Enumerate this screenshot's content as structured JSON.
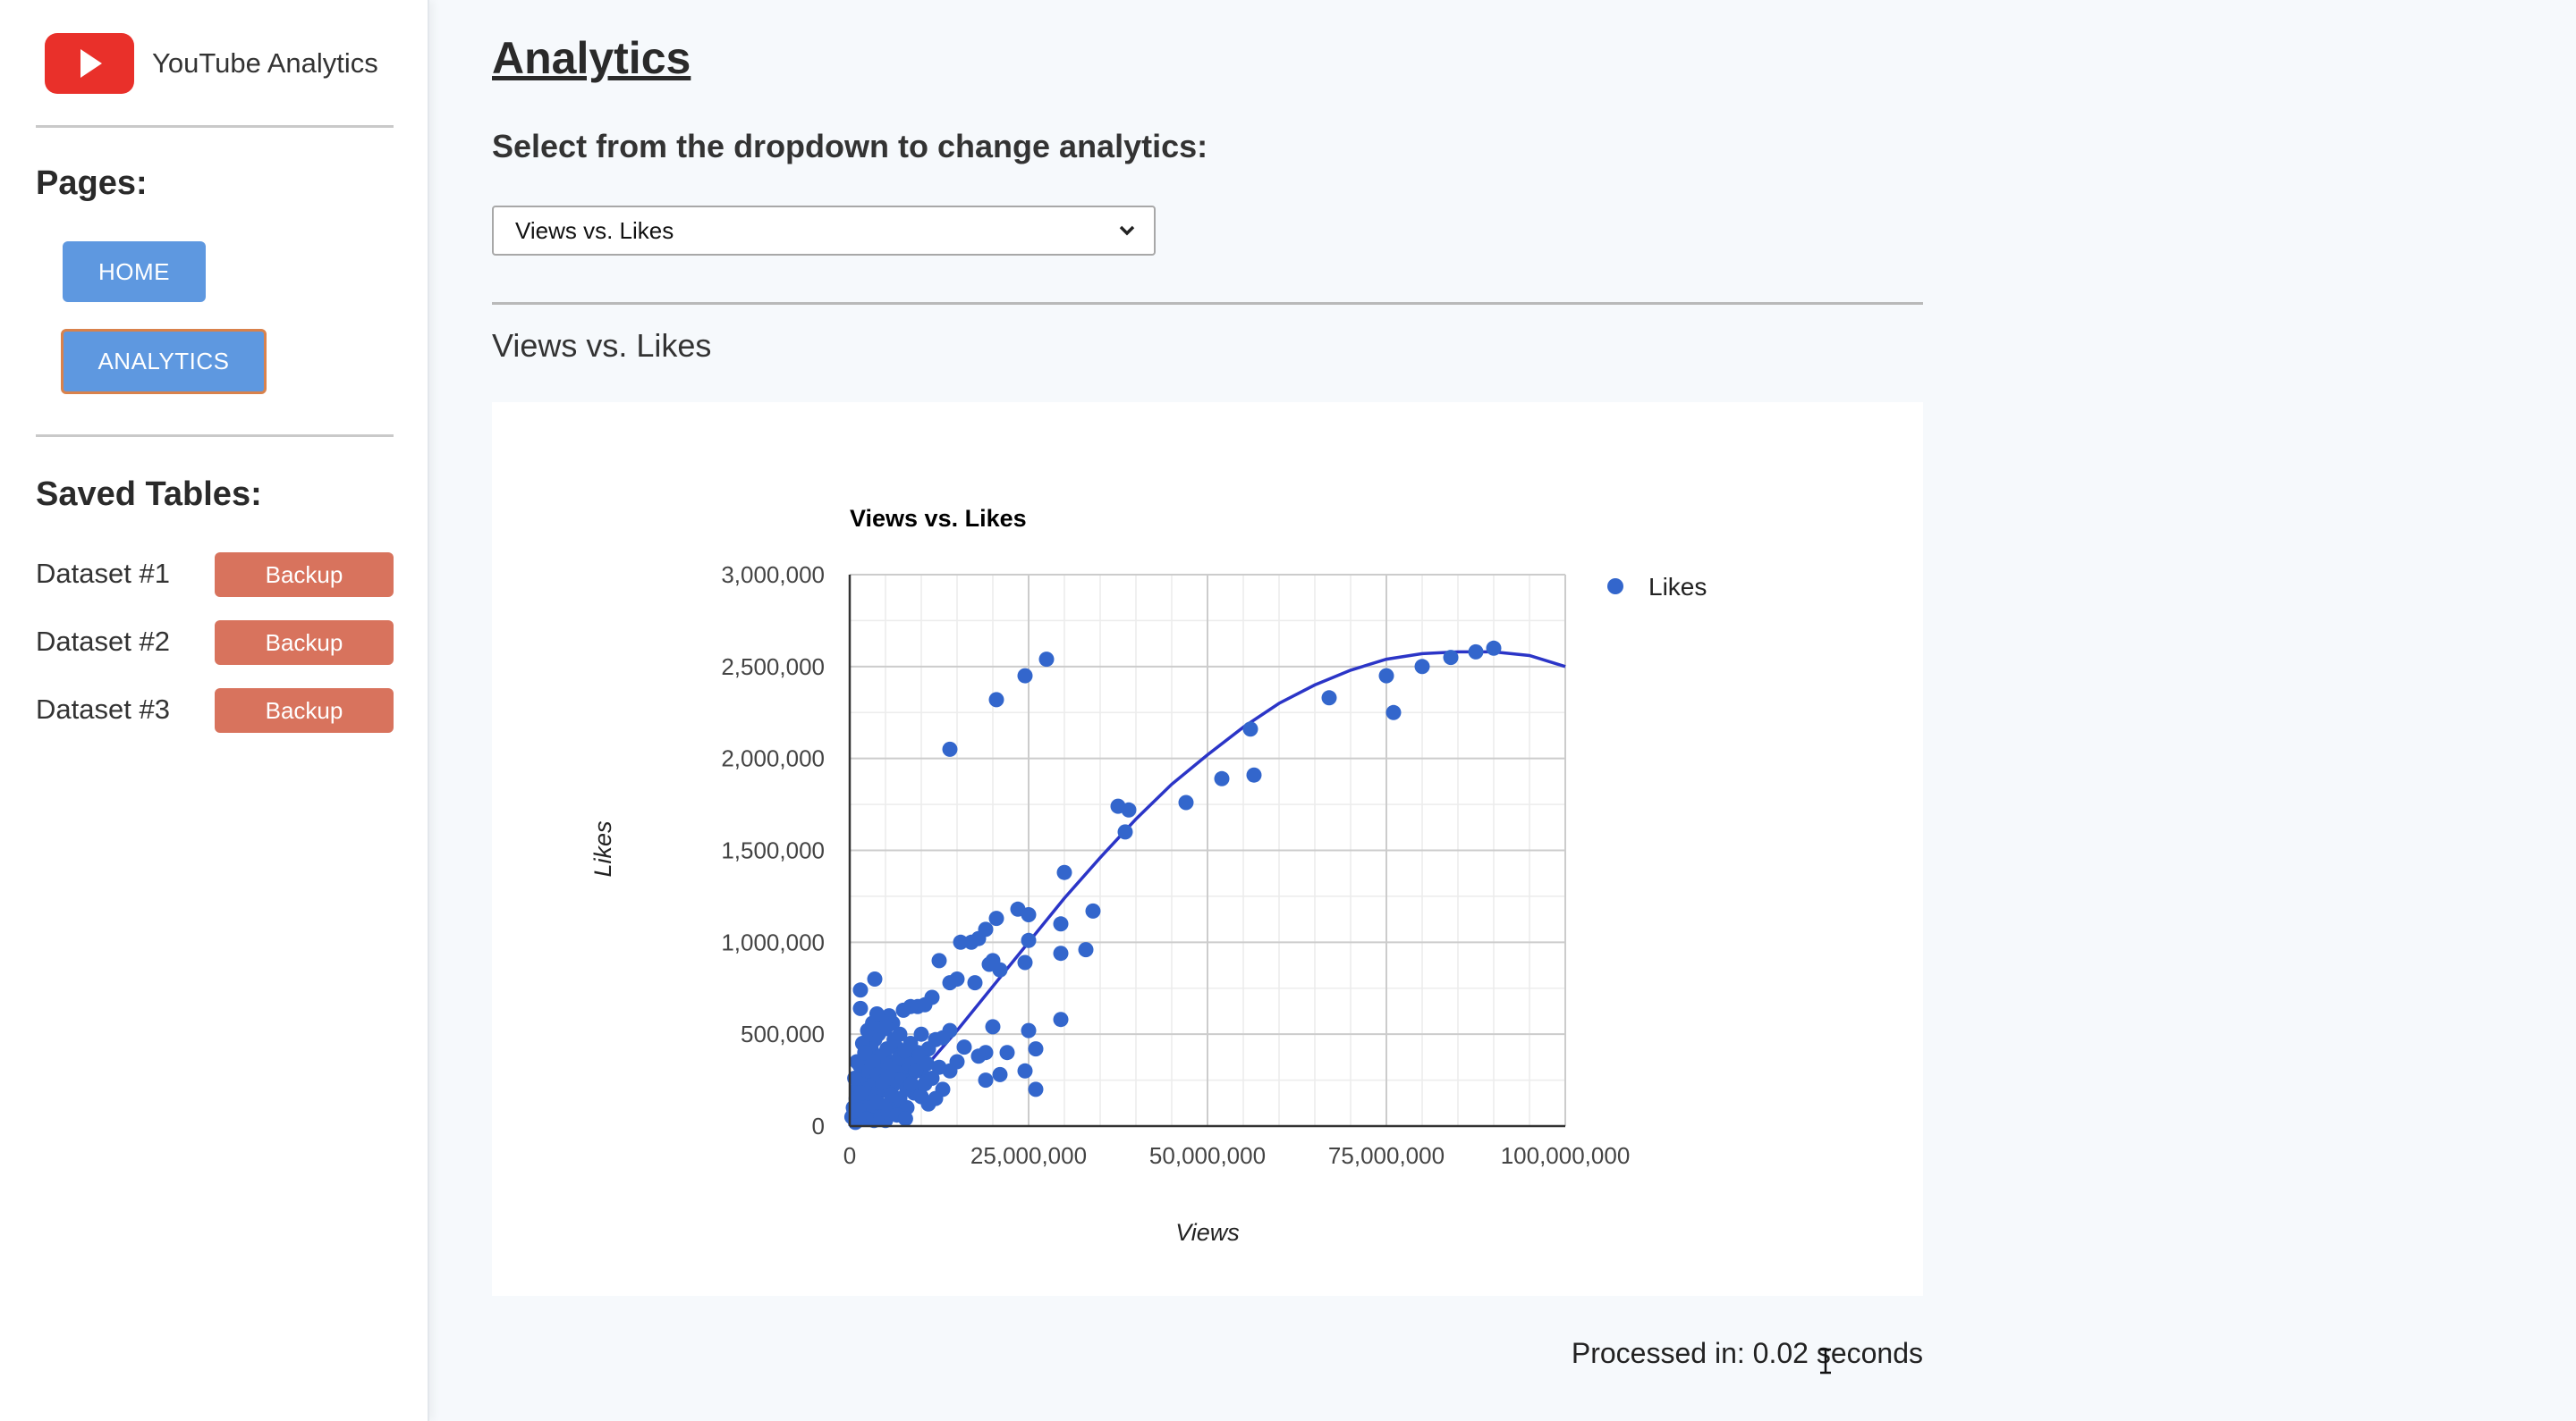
{
  "brand": {
    "name": "YouTube Analytics",
    "logo_icon": "youtube-play-icon",
    "logo_color": "#e9302a"
  },
  "sidebar": {
    "pages_heading": "Pages:",
    "nav": [
      {
        "label": "HOME",
        "active": false
      },
      {
        "label": "ANALYTICS",
        "active": true
      }
    ],
    "saved_heading": "Saved Tables:",
    "datasets": [
      {
        "label": "Dataset #1",
        "button": "Backup"
      },
      {
        "label": "Dataset #2",
        "button": "Backup"
      },
      {
        "label": "Dataset #3",
        "button": "Backup"
      }
    ]
  },
  "main": {
    "title": "Analytics",
    "select_label": "Select from the dropdown to change analytics:",
    "select_value": "Views vs. Likes",
    "section_title": "Views vs. Likes",
    "processed": "Processed in: 0.02 seconds"
  },
  "colors": {
    "accent_blue": "#5e98e0",
    "backup": "#d8735d",
    "series": "#3366cc",
    "trend": "#2b35c7"
  },
  "chart_data": {
    "type": "scatter",
    "title": "Views vs. Likes",
    "xlabel": "Views",
    "ylabel": "Likes",
    "xlim": [
      0,
      100000000
    ],
    "ylim": [
      0,
      3000000
    ],
    "x_ticks": [
      0,
      25000000,
      50000000,
      75000000,
      100000000
    ],
    "x_tick_labels": [
      "0",
      "25,000,000",
      "50,000,000",
      "75,000,000",
      "100,000,000"
    ],
    "y_ticks": [
      0,
      500000,
      1000000,
      1500000,
      2000000,
      2500000,
      3000000
    ],
    "y_tick_labels": [
      "0",
      "500,000",
      "1,000,000",
      "1,500,000",
      "2,000,000",
      "2,500,000",
      "3,000,000"
    ],
    "grid": true,
    "legend": {
      "position": "right",
      "entries": [
        "Likes"
      ]
    },
    "trendline": {
      "type": "polynomial",
      "x": [
        9000000,
        15000000,
        20000000,
        25000000,
        30000000,
        35000000,
        40000000,
        45000000,
        50000000,
        55000000,
        60000000,
        65000000,
        70000000,
        75000000,
        80000000,
        85000000,
        90000000,
        95000000,
        100000000
      ],
      "y": [
        250000,
        520000,
        760000,
        1000000,
        1240000,
        1460000,
        1670000,
        1860000,
        2020000,
        2170000,
        2300000,
        2400000,
        2480000,
        2540000,
        2570000,
        2580000,
        2580000,
        2560000,
        2500000
      ]
    },
    "series": [
      {
        "name": "Likes",
        "points": [
          [
            90000000,
            2600000
          ],
          [
            87500000,
            2580000
          ],
          [
            84000000,
            2550000
          ],
          [
            80000000,
            2500000
          ],
          [
            75000000,
            2450000
          ],
          [
            76000000,
            2250000
          ],
          [
            67000000,
            2330000
          ],
          [
            56000000,
            2160000
          ],
          [
            56500000,
            1910000
          ],
          [
            52000000,
            1890000
          ],
          [
            47000000,
            1760000
          ],
          [
            37500000,
            1740000
          ],
          [
            39000000,
            1720000
          ],
          [
            38500000,
            1600000
          ],
          [
            27500000,
            2540000
          ],
          [
            24500000,
            2450000
          ],
          [
            20500000,
            2320000
          ],
          [
            14000000,
            2050000
          ],
          [
            30000000,
            1380000
          ],
          [
            34000000,
            1170000
          ],
          [
            33000000,
            960000
          ],
          [
            29500000,
            940000
          ],
          [
            29500000,
            1100000
          ],
          [
            23500000,
            1180000
          ],
          [
            25000000,
            1150000
          ],
          [
            25000000,
            1010000
          ],
          [
            20500000,
            1130000
          ],
          [
            19000000,
            1070000
          ],
          [
            18000000,
            1020000
          ],
          [
            17000000,
            1000000
          ],
          [
            15500000,
            1000000
          ],
          [
            12500000,
            900000
          ],
          [
            20000000,
            900000
          ],
          [
            19500000,
            880000
          ],
          [
            21000000,
            850000
          ],
          [
            17500000,
            780000
          ],
          [
            15000000,
            800000
          ],
          [
            14000000,
            780000
          ],
          [
            24500000,
            890000
          ],
          [
            11500000,
            700000
          ],
          [
            10500000,
            660000
          ],
          [
            9500000,
            650000
          ],
          [
            8500000,
            650000
          ],
          [
            7500000,
            630000
          ],
          [
            3500000,
            800000
          ],
          [
            1500000,
            740000
          ],
          [
            1500000,
            640000
          ],
          [
            25000000,
            520000
          ],
          [
            29500000,
            580000
          ],
          [
            20000000,
            540000
          ],
          [
            24500000,
            300000
          ],
          [
            26000000,
            200000
          ],
          [
            26000000,
            420000
          ],
          [
            22000000,
            400000
          ],
          [
            21000000,
            280000
          ],
          [
            19000000,
            250000
          ],
          [
            19000000,
            400000
          ],
          [
            18000000,
            380000
          ],
          [
            16000000,
            430000
          ],
          [
            15000000,
            350000
          ],
          [
            14000000,
            300000
          ],
          [
            13000000,
            200000
          ],
          [
            12000000,
            150000
          ],
          [
            11000000,
            120000
          ],
          [
            13000000,
            480000
          ],
          [
            14000000,
            520000
          ],
          [
            12000000,
            470000
          ],
          [
            10000000,
            500000
          ],
          [
            11000000,
            420000
          ],
          [
            9500000,
            400000
          ],
          [
            8500000,
            450000
          ],
          [
            9000000,
            350000
          ],
          [
            10000000,
            300000
          ],
          [
            8000000,
            280000
          ],
          [
            7000000,
            500000
          ],
          [
            6500000,
            430000
          ],
          [
            6000000,
            560000
          ],
          [
            5500000,
            600000
          ],
          [
            5000000,
            530000
          ],
          [
            4500000,
            570000
          ],
          [
            4000000,
            500000
          ],
          [
            3500000,
            470000
          ],
          [
            3000000,
            420000
          ],
          [
            2500000,
            380000
          ],
          [
            2000000,
            300000
          ],
          [
            1500000,
            250000
          ],
          [
            1000000,
            200000
          ],
          [
            500000,
            100000
          ],
          [
            300000,
            50000
          ],
          [
            800000,
            20000
          ],
          [
            1200000,
            40000
          ],
          [
            2000000,
            60000
          ],
          [
            3000000,
            80000
          ],
          [
            4000000,
            60000
          ],
          [
            5000000,
            30000
          ],
          [
            6000000,
            100000
          ],
          [
            7000000,
            150000
          ],
          [
            8000000,
            100000
          ],
          [
            9000000,
            180000
          ],
          [
            10000000,
            160000
          ],
          [
            2500000,
            200000
          ],
          [
            3500000,
            250000
          ],
          [
            4500000,
            300000
          ],
          [
            5500000,
            350000
          ],
          [
            6500000,
            280000
          ],
          [
            7500000,
            320000
          ],
          [
            3000000,
            150000
          ],
          [
            4000000,
            180000
          ],
          [
            5000000,
            200000
          ],
          [
            6000000,
            220000
          ],
          [
            7000000,
            250000
          ],
          [
            8000000,
            200000
          ],
          [
            1800000,
            120000
          ],
          [
            2200000,
            160000
          ],
          [
            2800000,
            100000
          ],
          [
            3800000,
            130000
          ],
          [
            4800000,
            110000
          ],
          [
            5800000,
            170000
          ],
          [
            1000000,
            350000
          ],
          [
            1800000,
            450000
          ],
          [
            2500000,
            520000
          ],
          [
            3200000,
            560000
          ],
          [
            3800000,
            610000
          ],
          [
            4200000,
            380000
          ],
          [
            5200000,
            420000
          ],
          [
            6200000,
            470000
          ],
          [
            7200000,
            390000
          ],
          [
            8200000,
            340000
          ],
          [
            9200000,
            300000
          ],
          [
            10500000,
            230000
          ],
          [
            11500000,
            260000
          ],
          [
            12500000,
            320000
          ],
          [
            600000,
            80000
          ],
          [
            900000,
            150000
          ],
          [
            1300000,
            90000
          ],
          [
            1600000,
            180000
          ],
          [
            2400000,
            40000
          ],
          [
            3400000,
            30000
          ],
          [
            4400000,
            50000
          ],
          [
            5400000,
            70000
          ],
          [
            6600000,
            60000
          ],
          [
            7800000,
            40000
          ],
          [
            700000,
            260000
          ],
          [
            1400000,
            330000
          ],
          [
            2100000,
            400000
          ],
          [
            2700000,
            300000
          ],
          [
            3300000,
            350000
          ],
          [
            3900000,
            280000
          ],
          [
            4600000,
            240000
          ],
          [
            5300000,
            260000
          ],
          [
            6100000,
            330000
          ],
          [
            6900000,
            370000
          ],
          [
            7700000,
            410000
          ],
          [
            8600000,
            230000
          ],
          [
            9800000,
            380000
          ],
          [
            10800000,
            340000
          ]
        ]
      }
    ]
  }
}
